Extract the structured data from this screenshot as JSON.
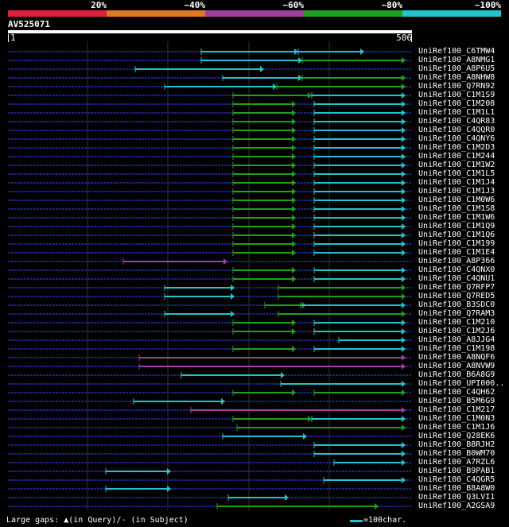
{
  "scale": {
    "labels": [
      "20%",
      "~40%",
      "~60%",
      "~80%",
      "~100%"
    ],
    "colors": [
      "#e0203a",
      "#e07820",
      "#a040a0",
      "#20a020",
      "#22c4cc"
    ]
  },
  "query": {
    "name": "AV525071",
    "start": "1",
    "end": "506"
  },
  "footer": {
    "gaps_text": "Large gaps: ▲(in Query)/- (in Subject)",
    "key_text": "=100char."
  },
  "hits": [
    {
      "name": "UniRef100_C6TMW4",
      "segs": [
        [
          253,
          375,
          "c"
        ],
        [
          375,
          458,
          "c"
        ]
      ]
    },
    {
      "name": "UniRef100_A8NMG1",
      "segs": [
        [
          253,
          380,
          "c"
        ],
        [
          380,
          510,
          "g"
        ]
      ]
    },
    {
      "name": "UniRef100_A8P6U5",
      "segs": [
        [
          170,
          332,
          "c"
        ]
      ]
    },
    {
      "name": "UniRef100_A8NHW8",
      "segs": [
        [
          280,
          380,
          "c"
        ],
        [
          380,
          510,
          "g"
        ]
      ]
    },
    {
      "name": "UniRef100_Q7RN92",
      "segs": [
        [
          207,
          348,
          "c"
        ],
        [
          348,
          510,
          "g"
        ]
      ]
    },
    {
      "name": "UniRef100_C1M1S9",
      "segs": [
        [
          293,
          392,
          "g"
        ],
        [
          392,
          510,
          "c"
        ]
      ]
    },
    {
      "name": "UniRef100_C1M208",
      "segs": [
        [
          293,
          372,
          "g"
        ],
        [
          395,
          510,
          "c"
        ]
      ]
    },
    {
      "name": "UniRef100_C1M1L1",
      "segs": [
        [
          293,
          372,
          "g"
        ],
        [
          395,
          510,
          "c"
        ]
      ]
    },
    {
      "name": "UniRef100_C4QR83",
      "segs": [
        [
          293,
          372,
          "g"
        ],
        [
          395,
          510,
          "c"
        ]
      ]
    },
    {
      "name": "UniRef100_C4QQR0",
      "segs": [
        [
          293,
          372,
          "g"
        ],
        [
          395,
          510,
          "c"
        ]
      ]
    },
    {
      "name": "UniRef100_C4QNY6",
      "segs": [
        [
          293,
          372,
          "g"
        ],
        [
          395,
          510,
          "c"
        ]
      ]
    },
    {
      "name": "UniRef100_C1M2D3",
      "segs": [
        [
          293,
          372,
          "g"
        ],
        [
          395,
          510,
          "c"
        ]
      ]
    },
    {
      "name": "UniRef100_C1M244",
      "segs": [
        [
          293,
          372,
          "g"
        ],
        [
          395,
          510,
          "c"
        ]
      ]
    },
    {
      "name": "UniRef100_C1M1W2",
      "segs": [
        [
          293,
          372,
          "g"
        ],
        [
          395,
          510,
          "c"
        ]
      ]
    },
    {
      "name": "UniRef100_C1M1L5",
      "segs": [
        [
          293,
          372,
          "g"
        ],
        [
          395,
          510,
          "c"
        ]
      ]
    },
    {
      "name": "UniRef100_C1M1J4",
      "segs": [
        [
          293,
          372,
          "g"
        ],
        [
          395,
          510,
          "c"
        ]
      ]
    },
    {
      "name": "UniRef100_C1M1J3",
      "segs": [
        [
          293,
          372,
          "g"
        ],
        [
          395,
          510,
          "c"
        ]
      ]
    },
    {
      "name": "UniRef100_C1M0W6",
      "segs": [
        [
          293,
          372,
          "g"
        ],
        [
          395,
          510,
          "c"
        ]
      ]
    },
    {
      "name": "UniRef100_C1M1S8",
      "segs": [
        [
          293,
          372,
          "g"
        ],
        [
          395,
          510,
          "c"
        ]
      ]
    },
    {
      "name": "UniRef100_C1M1W6",
      "segs": [
        [
          293,
          372,
          "g"
        ],
        [
          395,
          510,
          "c"
        ]
      ]
    },
    {
      "name": "UniRef100_C1M1Q9",
      "segs": [
        [
          293,
          372,
          "g"
        ],
        [
          395,
          510,
          "c"
        ]
      ]
    },
    {
      "name": "UniRef100_C1M1Q6",
      "segs": [
        [
          293,
          372,
          "g"
        ],
        [
          395,
          510,
          "c"
        ]
      ]
    },
    {
      "name": "UniRef100_C1M199",
      "segs": [
        [
          293,
          372,
          "g"
        ],
        [
          395,
          510,
          "c"
        ]
      ]
    },
    {
      "name": "UniRef100_C1M1E4",
      "segs": [
        [
          293,
          372,
          "g"
        ],
        [
          395,
          510,
          "c"
        ]
      ]
    },
    {
      "name": "UniRef100_A8P366",
      "segs": [
        [
          155,
          286,
          "m"
        ]
      ]
    },
    {
      "name": "UniRef100_C4QNX0",
      "segs": [
        [
          293,
          372,
          "g"
        ],
        [
          395,
          510,
          "c"
        ]
      ]
    },
    {
      "name": "UniRef100_C4QNU1",
      "segs": [
        [
          293,
          372,
          "g"
        ],
        [
          395,
          510,
          "c"
        ]
      ]
    },
    {
      "name": "UniRef100_Q7RFP7",
      "segs": [
        [
          207,
          295,
          "c"
        ],
        [
          350,
          510,
          "g"
        ]
      ]
    },
    {
      "name": "UniRef100_Q7RED5",
      "segs": [
        [
          207,
          295,
          "c"
        ],
        [
          350,
          510,
          "g"
        ]
      ]
    },
    {
      "name": "UniRef100_B3SDC0",
      "segs": [
        [
          333,
          385,
          "g"
        ],
        [
          378,
          510,
          "c"
        ]
      ]
    },
    {
      "name": "UniRef100_Q7RAM3",
      "segs": [
        [
          207,
          295,
          "c"
        ],
        [
          350,
          510,
          "g"
        ]
      ]
    },
    {
      "name": "UniRef100_C1M210",
      "segs": [
        [
          293,
          372,
          "g"
        ],
        [
          395,
          510,
          "c"
        ]
      ]
    },
    {
      "name": "UniRef100_C1M2J6",
      "segs": [
        [
          293,
          372,
          "g"
        ],
        [
          395,
          510,
          "c"
        ]
      ]
    },
    {
      "name": "UniRef100_A8JJG4",
      "segs": [
        [
          426,
          510,
          "c"
        ]
      ]
    },
    {
      "name": "UniRef100_C1M198",
      "segs": [
        [
          293,
          372,
          "g"
        ],
        [
          395,
          510,
          "c"
        ]
      ]
    },
    {
      "name": "UniRef100_A8NQF6",
      "segs": [
        [
          175,
          510,
          "m"
        ]
      ]
    },
    {
      "name": "UniRef100_A8NVW9",
      "segs": [
        [
          175,
          510,
          "m"
        ]
      ]
    },
    {
      "name": "UniRef100_B6A8G9",
      "segs": [
        [
          228,
          358,
          "c"
        ]
      ]
    },
    {
      "name": "UniRef100_UPI000..",
      "segs": [
        [
          353,
          510,
          "c"
        ]
      ]
    },
    {
      "name": "UniRef100_C4QH62",
      "segs": [
        [
          293,
          372,
          "g"
        ],
        [
          395,
          510,
          "g"
        ]
      ]
    },
    {
      "name": "UniRef100_B5M6G9",
      "segs": [
        [
          168,
          283,
          "c"
        ]
      ]
    },
    {
      "name": "UniRef100_C1M217",
      "segs": [
        [
          240,
          510,
          "m"
        ]
      ]
    },
    {
      "name": "UniRef100_C1M0N3",
      "segs": [
        [
          293,
          392,
          "g"
        ],
        [
          392,
          510,
          "c"
        ]
      ]
    },
    {
      "name": "UniRef100_C1M1J6",
      "segs": [
        [
          298,
          510,
          "g"
        ]
      ]
    },
    {
      "name": "UniRef100_Q28EK6",
      "segs": [
        [
          280,
          386,
          "c"
        ]
      ]
    },
    {
      "name": "UniRef100_B8RJH2",
      "segs": [
        [
          395,
          510,
          "c"
        ]
      ]
    },
    {
      "name": "UniRef100_B0WM70",
      "segs": [
        [
          395,
          510,
          "c"
        ]
      ]
    },
    {
      "name": "UniRef100_A7RZL6",
      "segs": [
        [
          420,
          510,
          "c"
        ]
      ]
    },
    {
      "name": "UniRef100_B9PAB1",
      "segs": [
        [
          133,
          215,
          "c"
        ]
      ]
    },
    {
      "name": "UniRef100_C4QGR5",
      "segs": [
        [
          407,
          510,
          "c"
        ]
      ]
    },
    {
      "name": "UniRef100_B8A8W0",
      "segs": [
        [
          133,
          215,
          "c"
        ]
      ]
    },
    {
      "name": "UniRef100_Q3LVI1",
      "segs": [
        [
          287,
          363,
          "c"
        ]
      ]
    },
    {
      "name": "UniRef100_A2GSA9",
      "segs": [
        [
          273,
          476,
          "g"
        ]
      ]
    }
  ]
}
